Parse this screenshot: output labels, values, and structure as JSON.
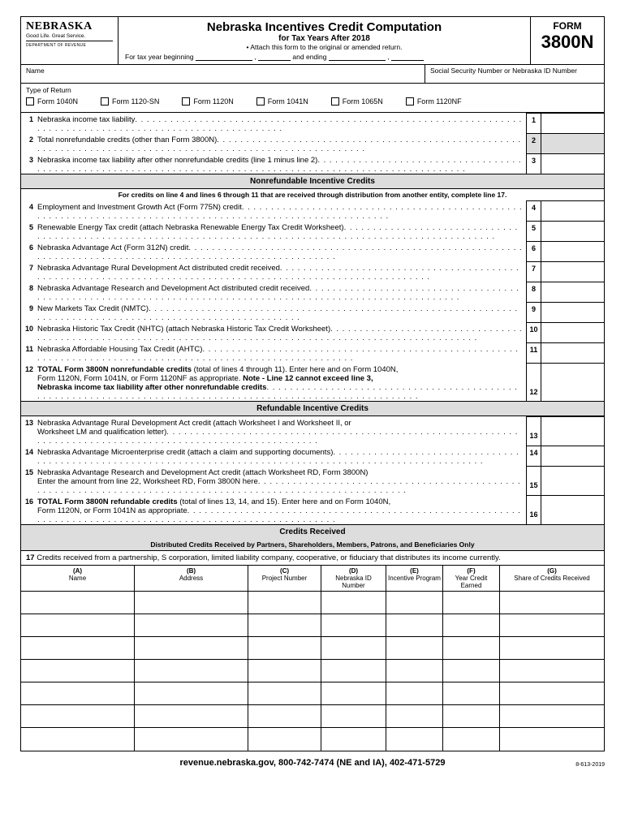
{
  "header": {
    "state": "NEBRASKA",
    "tagline": "Good Life. Great Service.",
    "dept": "DEPARTMENT OF REVENUE",
    "title": "Nebraska Incentives Credit Computation",
    "subtitle": "for Tax Years After 2018",
    "attach": "• Attach this form to the original or amended return.",
    "tax_year_prefix": "For tax year beginning",
    "and_ending": "and ending",
    "form_word": "FORM",
    "form_num": "3800N"
  },
  "row2": {
    "name_label": "Name",
    "ssn_label": "Social Security Number or Nebraska ID Number"
  },
  "type_return": {
    "label": "Type of Return",
    "options": [
      "Form 1040N",
      "Form 1120-SN",
      "Form 1120N",
      "Form 1041N",
      "Form 1065N",
      "Form 1120NF"
    ]
  },
  "lines": [
    {
      "n": "1",
      "t": "Nebraska income tax liability",
      "shaded": false
    },
    {
      "n": "2",
      "t": "Total nonrefundable credits (other than Form 3800N)",
      "shaded": true
    },
    {
      "n": "3",
      "t": "Nebraska income tax liability after other nonrefundable credits (line 1 minus line 2)",
      "shaded": false
    }
  ],
  "sec1": {
    "title": "Nonrefundable Incentive Credits",
    "sub": "For credits on line 4 and lines 6 through 11 that are received through distribution from another entity, complete line 17."
  },
  "lines2": [
    {
      "n": "4",
      "t": "Employment and Investment Growth Act (Form 775N) credit"
    },
    {
      "n": "5",
      "t": "Renewable Energy Tax credit (attach Nebraska Renewable Energy Tax Credit Worksheet)"
    },
    {
      "n": "6",
      "t": "Nebraska Advantage Act (Form 312N) credit"
    },
    {
      "n": "7",
      "t": "Nebraska Advantage Rural Development Act distributed credit received"
    },
    {
      "n": "8",
      "t": "Nebraska Advantage Research and Development Act distributed credit received"
    },
    {
      "n": "9",
      "t": "New Markets Tax Credit (NMTC)"
    },
    {
      "n": "10",
      "t": "Nebraska Historic Tax Credit (NHTC) (attach Nebraska Historic Tax Credit Worksheet)"
    },
    {
      "n": "11",
      "t": "Nebraska Affordable Housing Tax Credit (AHTC)"
    }
  ],
  "line12": {
    "n": "12",
    "t1": "TOTAL Form 3800N nonrefundable credits (total of lines 4 through 11). Enter here and on Form 1040N,",
    "t2": "Form 1120N, Form 1041N, or Form 1120NF as appropriate. Note - Line 12 cannot exceed line 3,",
    "t3": "Nebraska income tax liability after other nonrefundable credits"
  },
  "sec2": {
    "title": "Refundable Incentive Credits"
  },
  "line13": {
    "n": "13",
    "t1": "Nebraska Advantage Rural Development Act credit (attach Worksheet I and Worksheet II, or",
    "t2": "Worksheet LM and qualification letter)"
  },
  "line14": {
    "n": "14",
    "t": "Nebraska Advantage Microenterprise credit (attach a claim and supporting documents)"
  },
  "line15": {
    "n": "15",
    "t1": "Nebraska Advantage Research and Development Act credit (attach Worksheet RD, Form 3800N)",
    "t2": "Enter the amount from line 22, Worksheet RD, Form 3800N here"
  },
  "line16": {
    "n": "16",
    "t1": "TOTAL Form 3800N refundable credits (total of lines 13, 14, and 15). Enter here and on Form 1040N,",
    "t2": "Form 1120N, or Form 1041N as appropriate"
  },
  "sec3": {
    "title": "Credits Received",
    "sub": "Distributed Credits Received by Partners, Shareholders, Members, Patrons, and Beneficiaries Only"
  },
  "line17": {
    "n": "17",
    "t": "Credits received from a partnership, S corporation, limited liability company, cooperative, or fiduciary that distributes its income currently."
  },
  "table": {
    "cols": [
      {
        "l": "(A)",
        "h": "Name"
      },
      {
        "l": "(B)",
        "h": "Address"
      },
      {
        "l": "(C)",
        "h": "Project Number"
      },
      {
        "l": "(D)",
        "h": "Nebraska ID Number"
      },
      {
        "l": "(E)",
        "h": "Incentive Program"
      },
      {
        "l": "(F)",
        "h": "Year Credit Earned"
      },
      {
        "l": "(G)",
        "h": "Share of Credits Received"
      }
    ],
    "blank_rows": 7
  },
  "footer": {
    "text": "revenue.nebraska.gov, 800-742-7474 (NE and IA), 402-471-5729",
    "code": "8-613-2019"
  },
  "colors": {
    "shade": "#dddddd",
    "border": "#000000"
  }
}
